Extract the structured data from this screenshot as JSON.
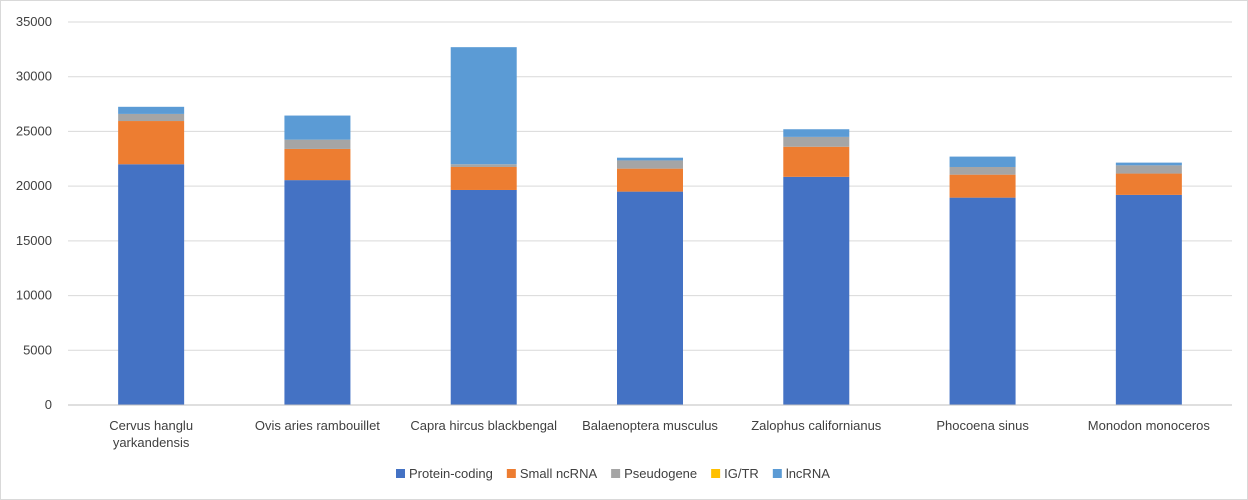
{
  "chart_data": {
    "type": "bar",
    "stacked": true,
    "categories": [
      [
        "Cervus hanglu",
        "yarkandensis"
      ],
      [
        "Ovis aries rambouillet"
      ],
      [
        "Capra hircus blackbengal"
      ],
      [
        "Balaenoptera musculus"
      ],
      [
        "Zalophus californianus"
      ],
      [
        "Phocoena sinus"
      ],
      [
        "Monodon monoceros"
      ]
    ],
    "series": [
      {
        "name": "Protein-coding",
        "color": "#4472C4",
        "values": [
          22000,
          20550,
          19650,
          19500,
          20850,
          18950,
          19200
        ]
      },
      {
        "name": "Small ncRNA",
        "color": "#ED7D31",
        "values": [
          3950,
          2850,
          2100,
          2100,
          2750,
          2100,
          1950
        ]
      },
      {
        "name": "Pseudogene",
        "color": "#A5A5A5",
        "values": [
          650,
          850,
          250,
          750,
          900,
          700,
          750
        ]
      },
      {
        "name": "IG/TR",
        "color": "#FFC000",
        "values": [
          0,
          0,
          0,
          0,
          0,
          0,
          0
        ]
      },
      {
        "name": "lncRNA",
        "color": "#5B9BD5",
        "values": [
          650,
          2200,
          10700,
          250,
          700,
          950,
          250
        ]
      }
    ],
    "yticks": [
      0,
      5000,
      10000,
      15000,
      20000,
      25000,
      30000,
      35000
    ],
    "ylim": [
      0,
      35000
    ],
    "grid": true,
    "legend_position": "bottom",
    "title": "",
    "xlabel": "",
    "ylabel": ""
  }
}
